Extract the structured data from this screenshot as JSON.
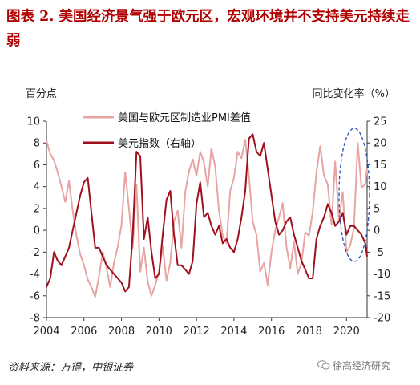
{
  "title": "图表 2. 美国经济景气强于欧元区，宏观环境并不支持美元持续走弱",
  "source": "资料来源：万得，中银证券",
  "watermark": "徐高经济研究",
  "watermark_icon": "wechat-icon",
  "colors": {
    "title": "#b00000",
    "pmi_series": "#e8a3a3",
    "usd_series": "#a0101c",
    "highlight_ellipse": "#2a4fb8"
  },
  "chart_data": {
    "type": "line",
    "left_unit": "百分点",
    "right_unit": "同比变化率（%）",
    "x_ticks": [
      "2004",
      "2006",
      "2008",
      "2010",
      "2012",
      "2014",
      "2016",
      "2018",
      "2020"
    ],
    "xlim": [
      2004,
      2021.1
    ],
    "y_left": {
      "lim": [
        -8,
        10
      ],
      "ticks": [
        "-8",
        "-6",
        "-4",
        "-2",
        "0",
        "2",
        "4",
        "6",
        "8",
        "10"
      ]
    },
    "y_right": {
      "lim": [
        -20,
        25
      ],
      "ticks": [
        "-20",
        "-15",
        "-10",
        "-5",
        "0",
        "5",
        "10",
        "15",
        "20",
        "25"
      ]
    },
    "grid": false,
    "legend_position": "top-center",
    "annotation": "dashed ellipse highlighting 2020-2021",
    "series": [
      {
        "name": "美国与欧元区制造业PMI差值",
        "axis": "left",
        "x": [
          2004.0,
          2004.2,
          2004.4,
          2004.6,
          2004.8,
          2005.0,
          2005.2,
          2005.4,
          2005.6,
          2005.8,
          2006.0,
          2006.2,
          2006.4,
          2006.6,
          2006.8,
          2007.0,
          2007.2,
          2007.4,
          2007.6,
          2007.8,
          2008.0,
          2008.2,
          2008.4,
          2008.6,
          2008.8,
          2009.0,
          2009.2,
          2009.4,
          2009.6,
          2009.8,
          2010.0,
          2010.2,
          2010.4,
          2010.6,
          2010.8,
          2011.0,
          2011.2,
          2011.4,
          2011.6,
          2011.8,
          2012.0,
          2012.2,
          2012.4,
          2012.6,
          2012.8,
          2013.0,
          2013.2,
          2013.4,
          2013.6,
          2013.8,
          2014.0,
          2014.2,
          2014.4,
          2014.6,
          2014.8,
          2015.0,
          2015.2,
          2015.4,
          2015.6,
          2015.8,
          2016.0,
          2016.2,
          2016.4,
          2016.6,
          2016.8,
          2017.0,
          2017.2,
          2017.4,
          2017.6,
          2017.8,
          2018.0,
          2018.2,
          2018.4,
          2018.6,
          2018.8,
          2019.0,
          2019.2,
          2019.4,
          2019.6,
          2019.8,
          2020.0,
          2020.2,
          2020.4,
          2020.6,
          2020.8,
          2021.0,
          2021.1
        ],
        "y": [
          8.2,
          7.0,
          6.4,
          5.3,
          4.0,
          2.6,
          4.5,
          1.8,
          -0.5,
          -2.2,
          -3.2,
          -4.5,
          -5.2,
          -6.1,
          -4.2,
          -2.0,
          -3.4,
          -5.2,
          -3.0,
          -1.5,
          0.5,
          5.3,
          2.0,
          -1.6,
          4.2,
          -3.8,
          -1.6,
          -4.7,
          -6.0,
          -5.0,
          -3.8,
          -1.5,
          -4.6,
          -3.0,
          0.8,
          1.8,
          -1.6,
          3.5,
          5.4,
          6.5,
          5.0,
          7.2,
          6.2,
          4.0,
          7.5,
          5.8,
          1.8,
          -0.5,
          -1.2,
          3.6,
          4.8,
          7.2,
          6.6,
          8.3,
          5.0,
          0.8,
          -0.4,
          -3.8,
          -3.0,
          -5.0,
          -2.0,
          0.0,
          1.2,
          2.5,
          -1.5,
          -3.5,
          -1.0,
          -4.0,
          -3.0,
          -0.2,
          -0.5,
          1.7,
          5.3,
          7.7,
          5.0,
          4.2,
          0.5,
          6.3,
          1.0,
          3.5,
          -2.0,
          -1.4,
          0.2,
          8.0,
          3.9,
          4.2,
          5.7
        ]
      },
      {
        "name": "美元指数（右轴）",
        "axis": "right",
        "x": [
          2004.0,
          2004.2,
          2004.4,
          2004.6,
          2004.8,
          2005.0,
          2005.2,
          2005.4,
          2005.6,
          2005.8,
          2006.0,
          2006.2,
          2006.4,
          2006.6,
          2006.8,
          2007.0,
          2007.2,
          2007.4,
          2007.6,
          2007.8,
          2008.0,
          2008.2,
          2008.4,
          2008.6,
          2008.8,
          2009.0,
          2009.2,
          2009.4,
          2009.6,
          2009.8,
          2010.0,
          2010.2,
          2010.4,
          2010.6,
          2010.8,
          2011.0,
          2011.2,
          2011.4,
          2011.6,
          2011.8,
          2012.0,
          2012.2,
          2012.4,
          2012.6,
          2012.8,
          2013.0,
          2013.2,
          2013.4,
          2013.6,
          2013.8,
          2014.0,
          2014.2,
          2014.4,
          2014.6,
          2014.8,
          2015.0,
          2015.2,
          2015.4,
          2015.6,
          2015.8,
          2016.0,
          2016.2,
          2016.4,
          2016.6,
          2016.8,
          2017.0,
          2017.2,
          2017.4,
          2017.6,
          2017.8,
          2018.0,
          2018.2,
          2018.4,
          2018.6,
          2018.8,
          2019.0,
          2019.2,
          2019.4,
          2019.6,
          2019.8,
          2020.0,
          2020.2,
          2020.4,
          2020.6,
          2020.8,
          2021.0,
          2021.1
        ],
        "y": [
          -13,
          -11,
          -5,
          -7,
          -8,
          -6,
          -4,
          0,
          4,
          8,
          11,
          12,
          4,
          -4,
          -4,
          -6,
          -8,
          -9,
          -10,
          -11,
          -12,
          -14,
          -13,
          -1,
          18,
          17,
          -2,
          3,
          -5,
          -11,
          -10,
          -1,
          7,
          9,
          -1,
          -8,
          -8,
          -9,
          -10,
          -7,
          6,
          11,
          3,
          4,
          1,
          -1,
          1,
          -3,
          -2,
          -4,
          -5,
          -2,
          3,
          9,
          21,
          22,
          18,
          17,
          20,
          14,
          8,
          2,
          -1,
          0,
          2,
          3,
          -1,
          -4,
          -7,
          -9,
          -11,
          -11,
          -2,
          1,
          3,
          6,
          4,
          1,
          2,
          4,
          -1,
          1,
          1,
          0,
          -1,
          -3,
          -6
        ]
      }
    ]
  }
}
